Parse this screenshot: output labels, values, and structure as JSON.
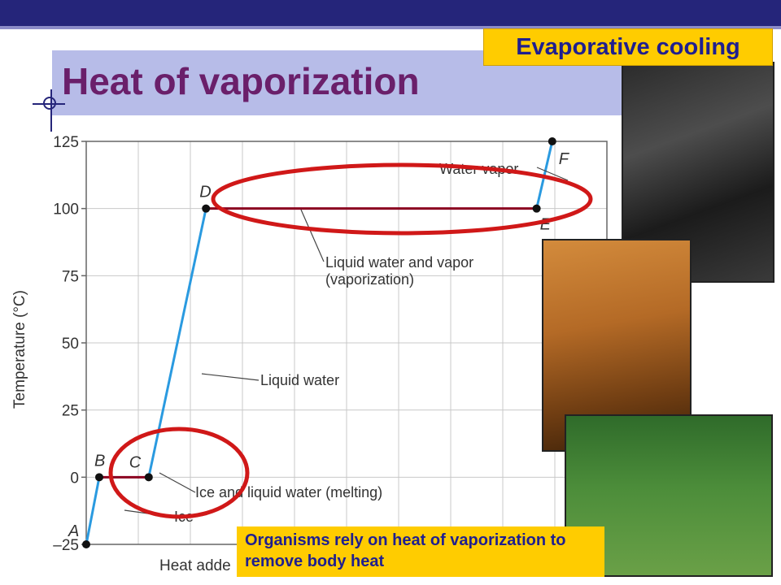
{
  "slide": {
    "title": "Heat of vaporization",
    "callout_top": "Evaporative cooling",
    "callout_bottom": "Organisms rely on heat of vaporization to remove body heat"
  },
  "colors": {
    "topbar": "#25257a",
    "title_band": "#b7bce8",
    "title_text": "#6a1f6a",
    "callout_bg": "#ffcc00",
    "callout_text": "#1f1f8f",
    "curve_blue": "#2a9ae0",
    "plateau_dark_red": "#8b0020",
    "highlight_red": "#d01818"
  },
  "photos": [
    {
      "icon": "sweating-man-photo"
    },
    {
      "icon": "lioness-photo"
    },
    {
      "icon": "panting-dog-photo"
    }
  ],
  "chart_data": {
    "type": "line",
    "ylabel": "Temperature (°C)",
    "xlabel": "Heat adde",
    "y_ticks": [
      "125",
      "100",
      "75",
      "50",
      "25",
      "0",
      "–25"
    ],
    "ylim": [
      -25,
      125
    ],
    "grid": true,
    "points": [
      {
        "label": "A",
        "x": 0,
        "y": -25
      },
      {
        "label": "B",
        "x": 0.5,
        "y": 0
      },
      {
        "label": "C",
        "x": 2.4,
        "y": 0
      },
      {
        "label": "D",
        "x": 4.6,
        "y": 100
      },
      {
        "label": "E",
        "x": 17.3,
        "y": 100
      },
      {
        "label": "F",
        "x": 17.9,
        "y": 125
      }
    ],
    "segments": [
      {
        "from": "A",
        "to": "B",
        "color": "blue"
      },
      {
        "from": "B",
        "to": "C",
        "color": "dark-red"
      },
      {
        "from": "C",
        "to": "D",
        "color": "blue"
      },
      {
        "from": "D",
        "to": "E",
        "color": "dark-red"
      },
      {
        "from": "E",
        "to": "F",
        "color": "blue"
      }
    ],
    "annotations": {
      "ice": "Ice",
      "melting": "Ice and liquid water (melting)",
      "liquid": "Liquid water",
      "vaporization_1": "Liquid water and vapor",
      "vaporization_2": "(vaporization)",
      "vapor": "Water vapor"
    },
    "highlights": [
      "melting",
      "vaporization"
    ]
  }
}
